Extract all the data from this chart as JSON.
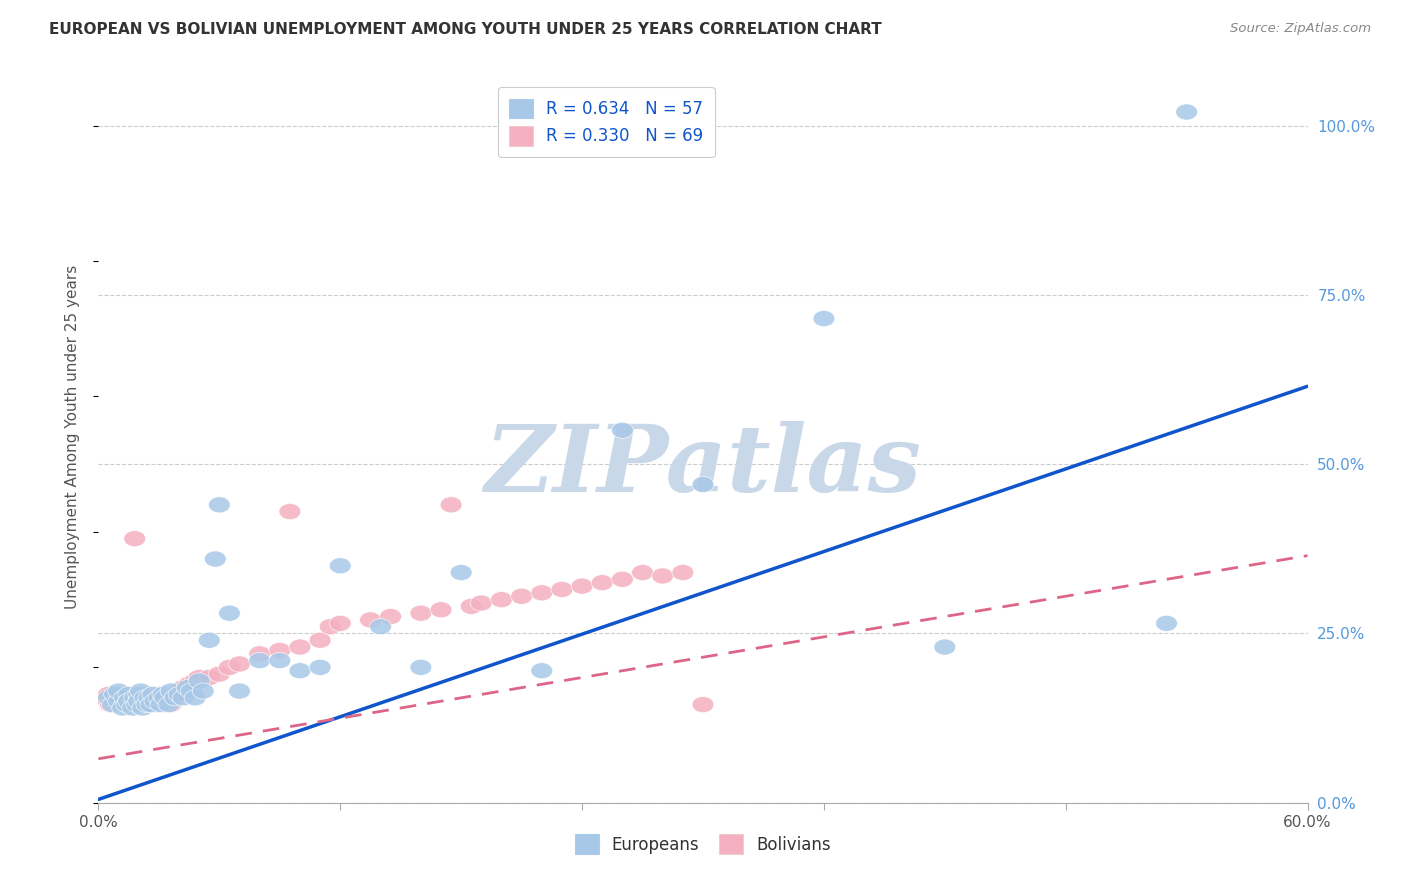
{
  "title": "EUROPEAN VS BOLIVIAN UNEMPLOYMENT AMONG YOUTH UNDER 25 YEARS CORRELATION CHART",
  "source": "Source: ZipAtlas.com",
  "ylabel": "Unemployment Among Youth under 25 years",
  "xlim": [
    0.0,
    0.6
  ],
  "ylim": [
    0.0,
    1.08
  ],
  "xticks": [
    0.0,
    0.12,
    0.24,
    0.36,
    0.48,
    0.6
  ],
  "xtick_labels": [
    "0.0%",
    "",
    "",
    "",
    "",
    "60.0%"
  ],
  "ytick_labels_right": [
    "0.0%",
    "25.0%",
    "50.0%",
    "75.0%",
    "100.0%"
  ],
  "ytick_vals_right": [
    0.0,
    0.25,
    0.5,
    0.75,
    1.0
  ],
  "europeans_R": "0.634",
  "europeans_N": "57",
  "bolivians_R": "0.330",
  "bolivians_N": "69",
  "blue_color": "#a8c8e8",
  "pink_color": "#f4b0c0",
  "blue_line_color": "#1155cc",
  "pink_line_color": "#dd6688",
  "watermark_text": "ZIPatlas",
  "watermark_color": "#c8d8e8",
  "eu_line_x0": 0.0,
  "eu_line_y0": 0.005,
  "eu_line_x1": 0.6,
  "eu_line_y1": 0.615,
  "bo_line_x0": 0.0,
  "bo_line_y0": 0.065,
  "bo_line_x1": 0.6,
  "bo_line_y1": 0.365,
  "europeans_x": [
    0.005,
    0.007,
    0.008,
    0.01,
    0.01,
    0.012,
    0.013,
    0.014,
    0.015,
    0.015,
    0.017,
    0.018,
    0.019,
    0.02,
    0.02,
    0.021,
    0.022,
    0.023,
    0.024,
    0.025,
    0.026,
    0.027,
    0.028,
    0.03,
    0.031,
    0.032,
    0.033,
    0.035,
    0.036,
    0.038,
    0.04,
    0.042,
    0.044,
    0.046,
    0.048,
    0.05,
    0.052,
    0.055,
    0.058,
    0.06,
    0.065,
    0.07,
    0.08,
    0.09,
    0.1,
    0.11,
    0.12,
    0.14,
    0.16,
    0.18,
    0.22,
    0.26,
    0.3,
    0.36,
    0.42,
    0.53,
    0.54
  ],
  "europeans_y": [
    0.155,
    0.145,
    0.16,
    0.15,
    0.165,
    0.14,
    0.155,
    0.145,
    0.16,
    0.15,
    0.14,
    0.155,
    0.145,
    0.16,
    0.15,
    0.165,
    0.14,
    0.155,
    0.145,
    0.155,
    0.145,
    0.16,
    0.15,
    0.155,
    0.145,
    0.16,
    0.155,
    0.145,
    0.165,
    0.155,
    0.16,
    0.155,
    0.17,
    0.165,
    0.155,
    0.18,
    0.165,
    0.24,
    0.36,
    0.44,
    0.28,
    0.165,
    0.21,
    0.21,
    0.195,
    0.2,
    0.35,
    0.26,
    0.2,
    0.34,
    0.195,
    0.55,
    0.47,
    0.715,
    0.23,
    0.265,
    1.02
  ],
  "bolivians_x": [
    0.003,
    0.005,
    0.006,
    0.007,
    0.008,
    0.009,
    0.01,
    0.01,
    0.011,
    0.012,
    0.012,
    0.013,
    0.013,
    0.014,
    0.015,
    0.015,
    0.016,
    0.017,
    0.018,
    0.018,
    0.019,
    0.02,
    0.021,
    0.022,
    0.023,
    0.024,
    0.025,
    0.026,
    0.027,
    0.028,
    0.03,
    0.032,
    0.034,
    0.036,
    0.038,
    0.04,
    0.042,
    0.045,
    0.048,
    0.05,
    0.055,
    0.06,
    0.065,
    0.07,
    0.08,
    0.09,
    0.095,
    0.1,
    0.11,
    0.115,
    0.12,
    0.135,
    0.145,
    0.16,
    0.17,
    0.175,
    0.185,
    0.19,
    0.2,
    0.21,
    0.22,
    0.23,
    0.24,
    0.25,
    0.26,
    0.27,
    0.28,
    0.29,
    0.3
  ],
  "bolivians_y": [
    0.155,
    0.16,
    0.145,
    0.155,
    0.15,
    0.155,
    0.145,
    0.16,
    0.155,
    0.145,
    0.16,
    0.155,
    0.145,
    0.155,
    0.145,
    0.16,
    0.155,
    0.145,
    0.155,
    0.39,
    0.15,
    0.145,
    0.16,
    0.155,
    0.145,
    0.155,
    0.16,
    0.145,
    0.155,
    0.145,
    0.16,
    0.155,
    0.155,
    0.145,
    0.16,
    0.165,
    0.17,
    0.175,
    0.18,
    0.185,
    0.185,
    0.19,
    0.2,
    0.205,
    0.22,
    0.225,
    0.43,
    0.23,
    0.24,
    0.26,
    0.265,
    0.27,
    0.275,
    0.28,
    0.285,
    0.44,
    0.29,
    0.295,
    0.3,
    0.305,
    0.31,
    0.315,
    0.32,
    0.325,
    0.33,
    0.34,
    0.335,
    0.34,
    0.145
  ]
}
